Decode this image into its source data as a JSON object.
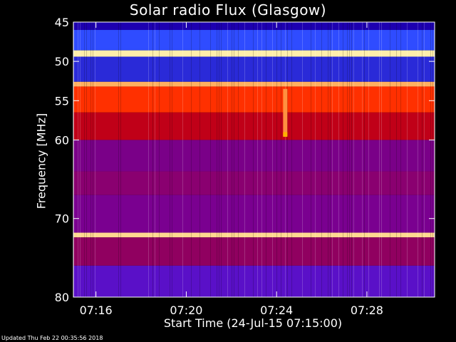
{
  "chart_data": {
    "type": "heatmap",
    "title": "Solar radio Flux (Glasgow)",
    "xlabel": "Start Time (24-Jul-15 07:15:00)",
    "ylabel": "Frequency [MHz]",
    "x_range": [
      "07:15:00",
      "07:31:00"
    ],
    "y_range": [
      45,
      80
    ],
    "x_ticks": [
      "07:16",
      "07:20",
      "07:24",
      "07:28"
    ],
    "y_ticks": [
      "45",
      "50",
      "55",
      "60",
      "70",
      "80"
    ],
    "grid": false,
    "colormap": [
      "#1a00a0",
      "#3040ff",
      "#8000a0",
      "#c00020",
      "#ff2000",
      "#ff8000",
      "#ffe080"
    ],
    "bands": [
      {
        "from": 45.0,
        "to": 46.0,
        "color": "#1d00b0"
      },
      {
        "from": 46.0,
        "to": 48.6,
        "color": "#2f4cff"
      },
      {
        "from": 48.6,
        "to": 49.4,
        "color": "#ffeeaa"
      },
      {
        "from": 49.4,
        "to": 52.6,
        "color": "#2a2ad8"
      },
      {
        "from": 52.6,
        "to": 53.2,
        "color": "#ffb060"
      },
      {
        "from": 53.2,
        "to": 56.5,
        "color": "#ff3000"
      },
      {
        "from": 56.5,
        "to": 60.0,
        "color": "#c00018"
      },
      {
        "from": 60.0,
        "to": 64.0,
        "color": "#7a0088"
      },
      {
        "from": 64.0,
        "to": 67.0,
        "color": "#8a0070"
      },
      {
        "from": 67.0,
        "to": 71.8,
        "color": "#7a0090"
      },
      {
        "from": 71.8,
        "to": 72.4,
        "color": "#ffd890"
      },
      {
        "from": 72.4,
        "to": 76.0,
        "color": "#900060"
      },
      {
        "from": 76.0,
        "to": 80.0,
        "color": "#5a10c8"
      }
    ],
    "events": [
      {
        "time": "07:24:23",
        "f_from": 53.5,
        "f_to": 59.5,
        "color": "#ff9040"
      },
      {
        "time": "07:24:23",
        "f_from": 59.0,
        "f_to": 59.6,
        "color": "#ffb000"
      }
    ]
  },
  "footer": {
    "updated": "Updated Thu Feb 22 00:35:56 2018"
  }
}
